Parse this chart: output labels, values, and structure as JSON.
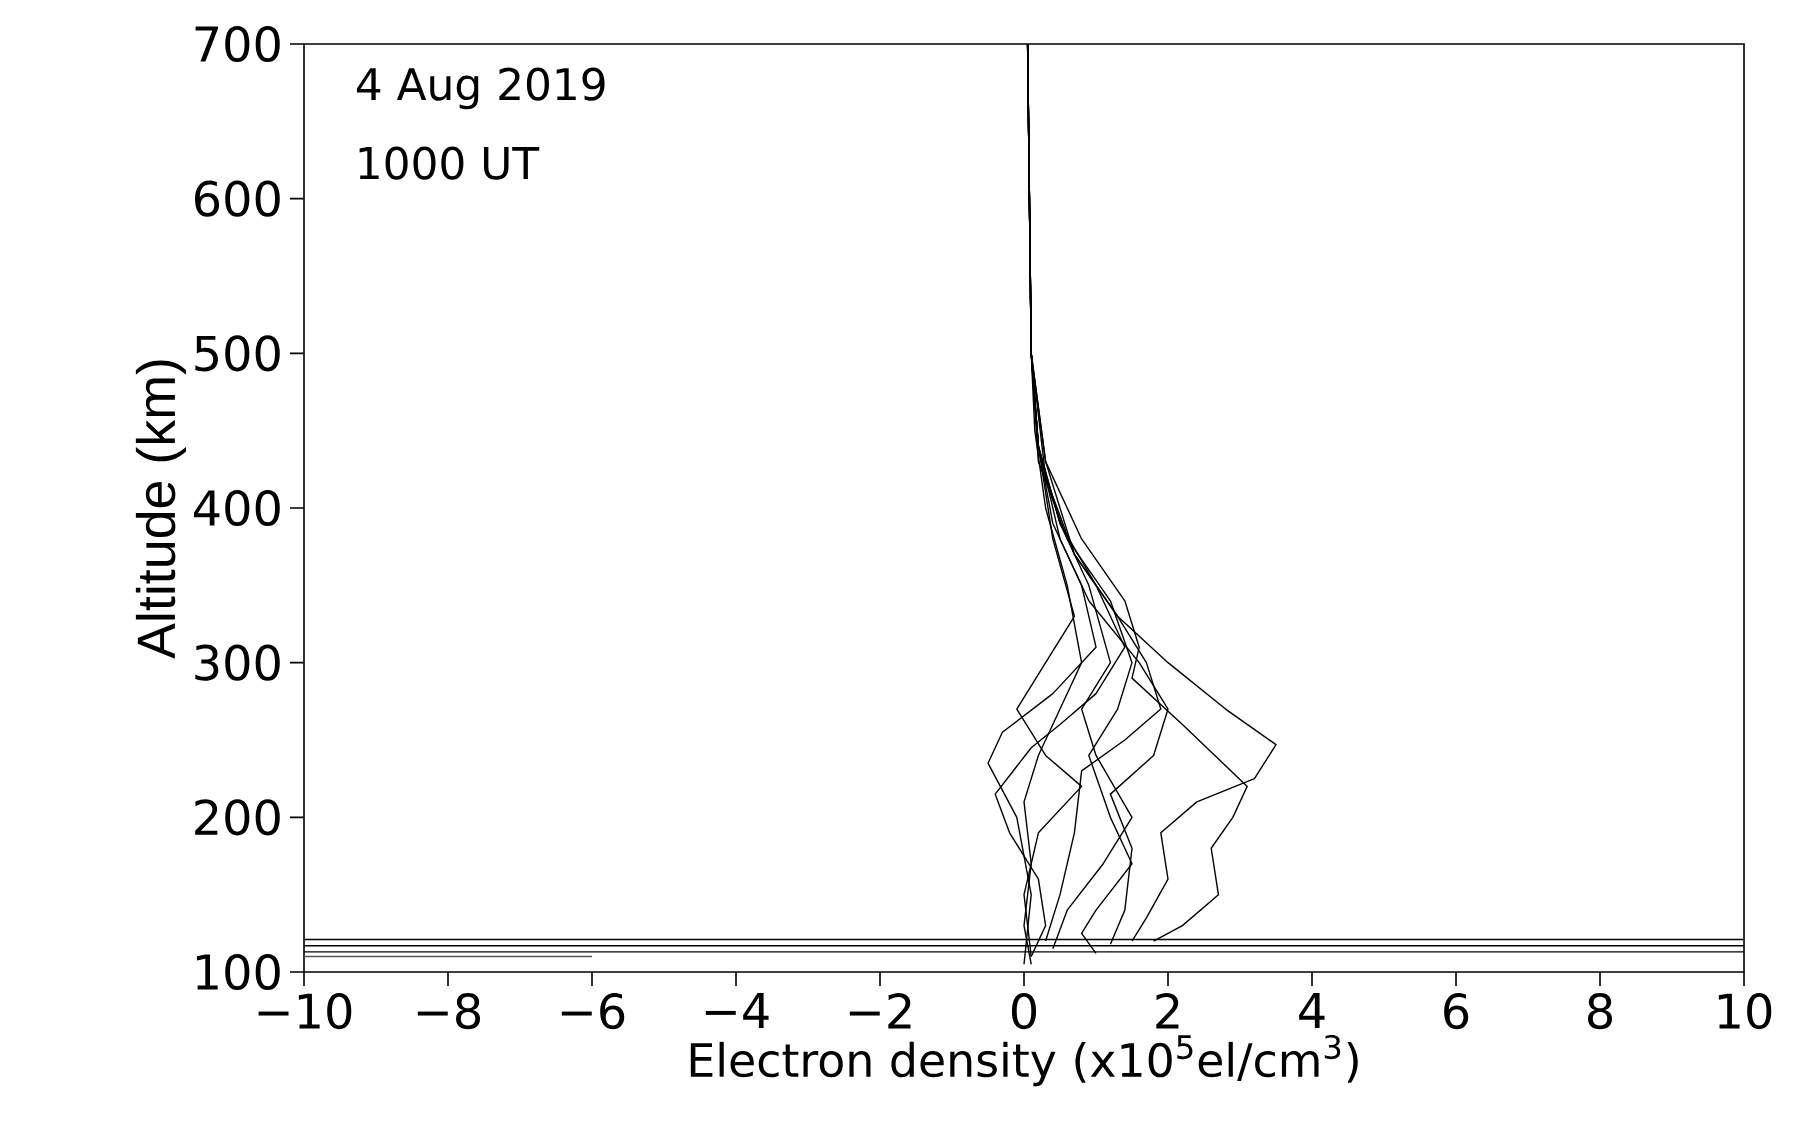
{
  "chart_data": {
    "type": "line",
    "xlabel": "Electron density (x10$^{5}$el/cm$^{3}$)",
    "ylabel": "Altitude (km)",
    "annotations": [
      "4 Aug 2019",
      "1000 UT"
    ],
    "xlim": [
      -10,
      10
    ],
    "ylim": [
      100,
      700
    ],
    "xticks": [
      {
        "value": -10,
        "label": "−10"
      },
      {
        "value": -8,
        "label": "−8"
      },
      {
        "value": -6,
        "label": "−6"
      },
      {
        "value": -4,
        "label": "−4"
      },
      {
        "value": -2,
        "label": "−2"
      },
      0,
      2,
      4,
      6,
      8,
      10
    ],
    "yticks": [
      100,
      200,
      300,
      400,
      500,
      600,
      700
    ],
    "marker": "none",
    "line_style": "solid",
    "series": [
      {
        "color": "#000000",
        "x": [
          0.05,
          0.1,
          0.3,
          0.7,
          1.3,
          2.0,
          2.8,
          3.5,
          3.2,
          2.4,
          1.9,
          2.0,
          1.7,
          1.5
        ],
        "values": [
          700,
          500,
          420,
          370,
          330,
          300,
          270,
          247,
          225,
          210,
          190,
          160,
          135,
          120
        ]
      },
      {
        "color": "#000000",
        "x": [
          0.05,
          0.1,
          0.3,
          0.8,
          1.4,
          1.6,
          1.5,
          2.2,
          3.1,
          2.9,
          2.6,
          2.7,
          2.2,
          1.8
        ],
        "values": [
          700,
          500,
          430,
          380,
          340,
          310,
          290,
          260,
          220,
          200,
          180,
          150,
          130,
          120
        ]
      },
      {
        "color": "#000000",
        "x": [
          0.05,
          0.1,
          0.2,
          0.6,
          1.2,
          1.5,
          1.3,
          0.9,
          1.2,
          1.5,
          1.0,
          0.8,
          1.0
        ],
        "values": [
          700,
          500,
          430,
          380,
          340,
          300,
          270,
          240,
          200,
          170,
          140,
          125,
          112
        ]
      },
      {
        "color": "#000000",
        "x": [
          0.05,
          0.1,
          0.2,
          0.5,
          1.0,
          1.4,
          1.0,
          0.5,
          0.1,
          -0.4,
          -0.2,
          0.2,
          0.3,
          0.1
        ],
        "values": [
          700,
          500,
          440,
          390,
          350,
          310,
          280,
          260,
          245,
          215,
          190,
          160,
          130,
          110
        ]
      },
      {
        "color": "#000000",
        "x": [
          0.05,
          0.1,
          0.2,
          0.4,
          0.8,
          1.0,
          0.4,
          -0.3,
          -0.5,
          -0.1,
          0.1,
          0.0
        ],
        "values": [
          700,
          500,
          440,
          390,
          350,
          310,
          280,
          255,
          235,
          200,
          150,
          105
        ]
      },
      {
        "color": "#000000",
        "x": [
          0.05,
          0.1,
          0.2,
          0.5,
          0.9,
          1.2,
          0.8,
          1.0,
          1.5,
          1.1,
          0.6,
          0.4
        ],
        "values": [
          700,
          500,
          440,
          390,
          350,
          300,
          270,
          240,
          200,
          170,
          140,
          115
        ]
      },
      {
        "color": "#000000",
        "x": [
          0.05,
          0.1,
          0.15,
          0.3,
          0.6,
          0.8,
          0.5,
          0.2,
          0.0,
          0.1,
          0.0,
          0.1
        ],
        "values": [
          700,
          500,
          450,
          400,
          350,
          300,
          270,
          240,
          210,
          170,
          130,
          105
        ]
      },
      {
        "color": "#000000",
        "x": [
          0.05,
          0.1,
          0.2,
          0.4,
          0.7,
          0.3,
          -0.1,
          0.3,
          0.8,
          0.2,
          0.0,
          0.1
        ],
        "values": [
          700,
          500,
          440,
          380,
          330,
          300,
          270,
          240,
          220,
          190,
          150,
          110
        ]
      },
      {
        "color": "#000000",
        "x": [
          0.05,
          0.1,
          0.3,
          0.7,
          1.3,
          1.7,
          1.9,
          1.4,
          0.8,
          0.7,
          0.5,
          0.3
        ],
        "values": [
          700,
          500,
          430,
          370,
          330,
          300,
          270,
          250,
          230,
          190,
          150,
          120
        ]
      },
      {
        "color": "#000000",
        "x": [
          0.05,
          0.1,
          0.2,
          0.5,
          0.9,
          1.6,
          2.0,
          1.8,
          1.2,
          1.5,
          1.4,
          1.2
        ],
        "values": [
          700,
          500,
          440,
          380,
          340,
          300,
          270,
          240,
          215,
          180,
          140,
          118
        ]
      },
      {
        "color": "#000000",
        "x": [
          -10,
          10
        ],
        "values": [
          113,
          113
        ]
      },
      {
        "color": "#000000",
        "x": [
          -10,
          10
        ],
        "values": [
          117,
          117
        ]
      },
      {
        "color": "#000000",
        "x": [
          -10,
          10
        ],
        "values": [
          121,
          121
        ]
      },
      {
        "color": "#555555",
        "x": [
          -10,
          -6
        ],
        "values": [
          110,
          110
        ]
      }
    ]
  }
}
